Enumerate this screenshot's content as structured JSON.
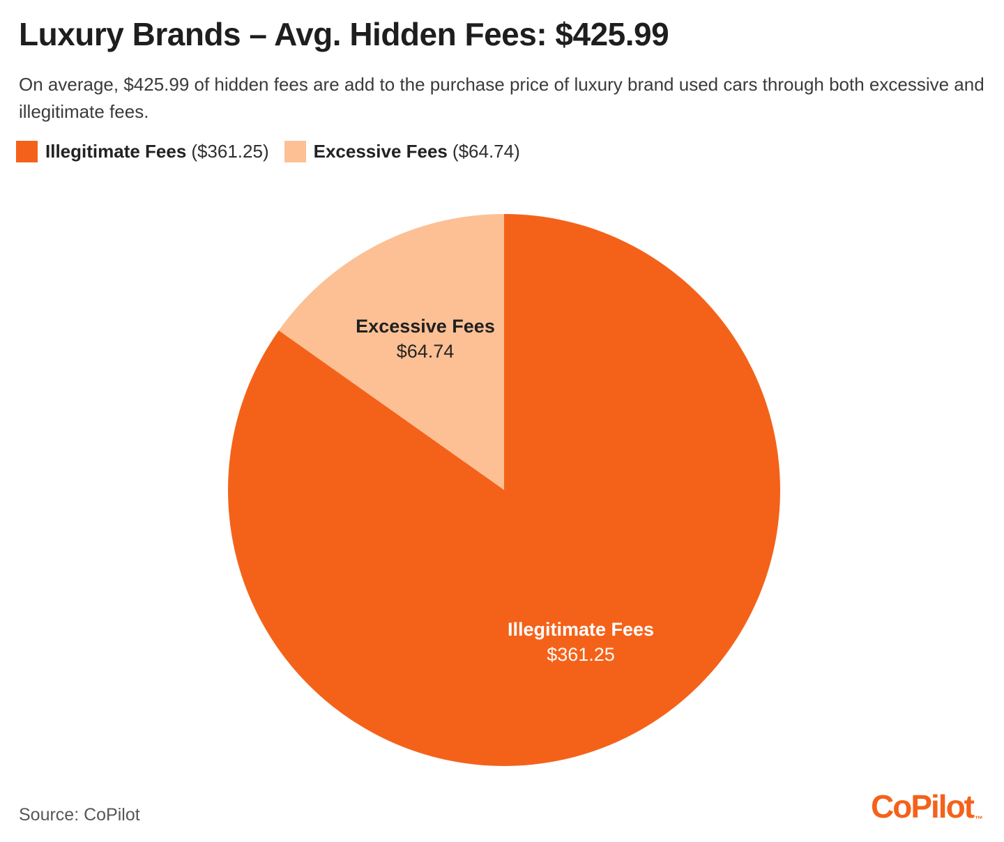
{
  "header": {
    "title": "Luxury Brands – Avg. Hidden Fees: $425.99",
    "subtitle": "On average, $425.99 of hidden fees are add to the purchase price of luxury brand used cars through both excessive and illegitimate fees."
  },
  "legend": {
    "items": [
      {
        "label": "Illegitimate Fees",
        "value_text": "($361.25)",
        "color": "#F4621A"
      },
      {
        "label": "Excessive Fees",
        "value_text": "($64.74)",
        "color": "#FCC094"
      }
    ]
  },
  "chart_data": {
    "type": "pie",
    "title": "Luxury Brands – Avg. Hidden Fees: $425.99",
    "total": 425.99,
    "start_angle_deg": 0,
    "direction": "clockwise",
    "legend_position": "top-left",
    "slices": [
      {
        "label": "Illegitimate Fees",
        "value": 361.25,
        "value_label": "$361.25",
        "color": "#F4621A",
        "text_color": "#FFFFFF"
      },
      {
        "label": "Excessive Fees",
        "value": 64.74,
        "value_label": "$64.74",
        "color": "#FCC094",
        "text_color": "#1F1F1F"
      }
    ]
  },
  "footer": {
    "source": "Source: CoPilot",
    "logo_text": "CoPilot",
    "logo_tm": "™",
    "logo_color": "#F4621A"
  }
}
